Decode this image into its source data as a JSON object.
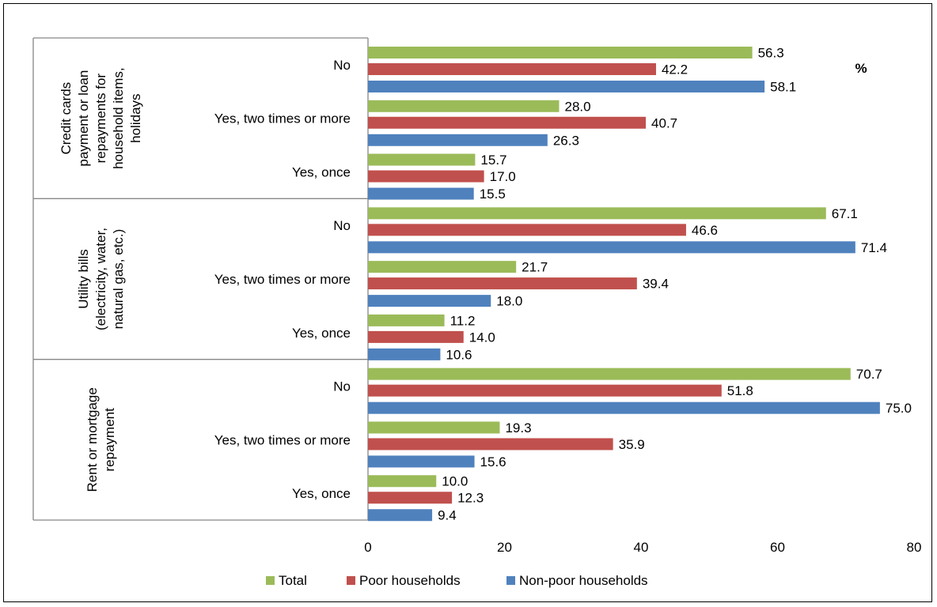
{
  "chart_data": {
    "type": "bar",
    "orientation": "horizontal",
    "unit_label": "%",
    "groups": [
      {
        "label": [
          "Credit cards",
          "payment or loan",
          "repayments for",
          "household items,",
          "holidays"
        ],
        "categories": [
          "No",
          "Yes, two times or more",
          "Yes, once"
        ]
      },
      {
        "label": [
          "Utility bills",
          "(electricity, water,",
          "natural gas, etc.)"
        ],
        "categories": [
          "No",
          "Yes, two times or more",
          "Yes, once"
        ]
      },
      {
        "label": [
          "Rent or mortgage",
          "repayment"
        ],
        "categories": [
          "No",
          "Yes, two times or more",
          "Yes, once"
        ]
      }
    ],
    "series": [
      {
        "name": "Total",
        "color": "#9bbb59",
        "values": [
          56.3,
          28.0,
          15.7,
          67.1,
          21.7,
          11.2,
          70.7,
          19.3,
          10.0
        ]
      },
      {
        "name": "Poor households",
        "color": "#c0504d",
        "values": [
          42.2,
          40.7,
          17.0,
          46.6,
          39.4,
          14.0,
          51.8,
          35.9,
          12.3
        ]
      },
      {
        "name": "Non-poor households",
        "color": "#4f81bd",
        "values": [
          58.1,
          26.3,
          15.5,
          71.4,
          18.0,
          10.6,
          75.0,
          15.6,
          9.4
        ]
      }
    ],
    "xlim": [
      0,
      80
    ],
    "xticks": [
      "0",
      "20",
      "40",
      "60",
      "80"
    ],
    "grid": false,
    "legend_position": "bottom"
  }
}
